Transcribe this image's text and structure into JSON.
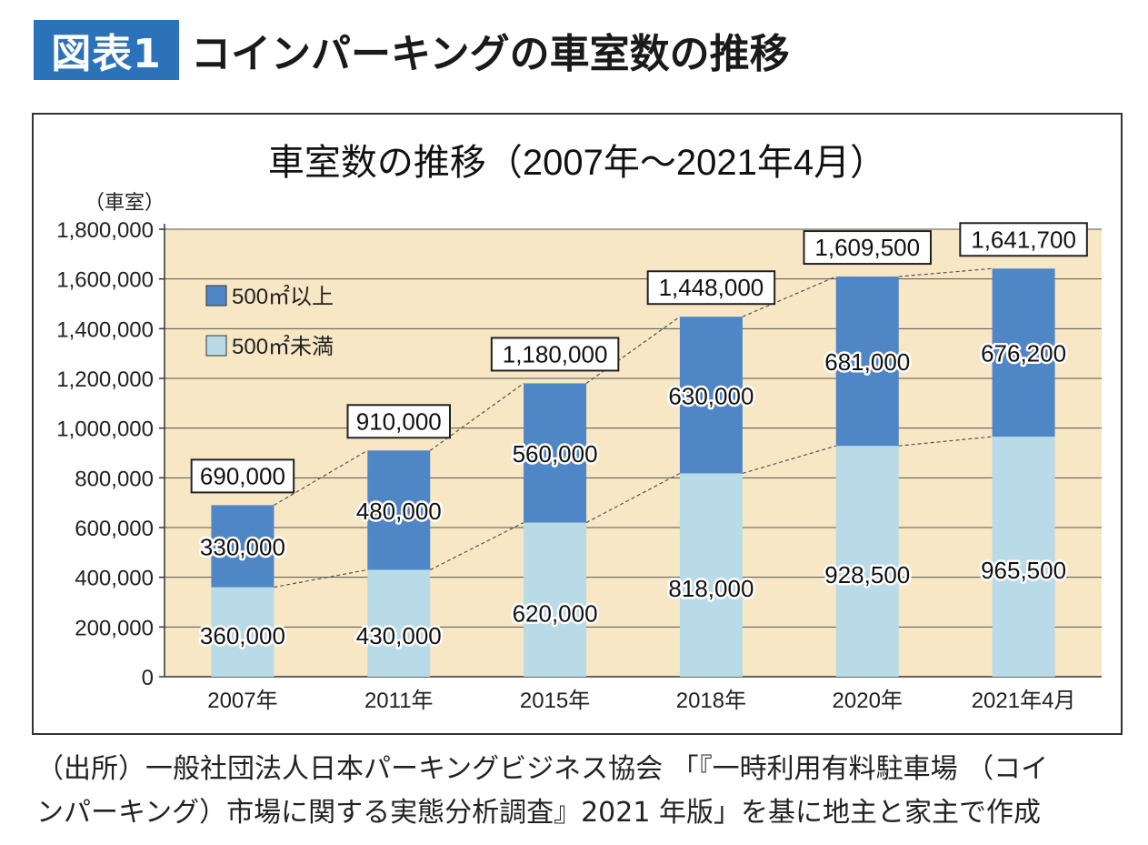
{
  "header": {
    "badge": "図表1",
    "title": "コインパーキングの車室数の推移"
  },
  "source_note": {
    "line1": "（出所）一般社団法人日本パーキングビジネス協会 「『一時利用有料駐車場 （コイ",
    "line2": "ンパーキング）市場に関する実態分析調査』2021 年版」を基に地主と家主で作成"
  },
  "colors": {
    "upper": "#4f86c6",
    "lower": "#b9dbe8",
    "plot_bg": "#f7e7c4",
    "badge": "#2c72b8"
  },
  "chart_data": {
    "type": "bar",
    "stacked": true,
    "title": "車室数の推移（2007年～2021年4月）",
    "ylabel": "（車室）",
    "xlabel": "",
    "ylim": [
      0,
      1800000
    ],
    "ytick_labels": [
      "0",
      "200,000",
      "400,000",
      "600,000",
      "800,000",
      "1,000,000",
      "1,200,000",
      "1,400,000",
      "1,600,000",
      "1,800,000"
    ],
    "grid": true,
    "legend_position": "top-left",
    "categories": [
      "2007年",
      "2011年",
      "2015年",
      "2018年",
      "2020年",
      "2021年4月"
    ],
    "series": [
      {
        "name": "500㎡未満",
        "color": "#b9dbe8",
        "values": [
          360000,
          430000,
          620000,
          818000,
          928500,
          965500
        ],
        "labels": [
          "360,000",
          "430,000",
          "620,000",
          "818,000",
          "928,500",
          "965,500"
        ]
      },
      {
        "name": "500㎡以上",
        "color": "#4f86c6",
        "values": [
          330000,
          480000,
          560000,
          630000,
          681000,
          676200
        ],
        "labels": [
          "330,000",
          "480,000",
          "560,000",
          "630,000",
          "681,000",
          "676,200"
        ]
      }
    ],
    "totals": [
      690000,
      910000,
      1180000,
      1448000,
      1609500,
      1641700
    ],
    "total_labels": [
      "690,000",
      "910,000",
      "1,180,000",
      "1,448,000",
      "1,609,500",
      "1,641,700"
    ]
  }
}
